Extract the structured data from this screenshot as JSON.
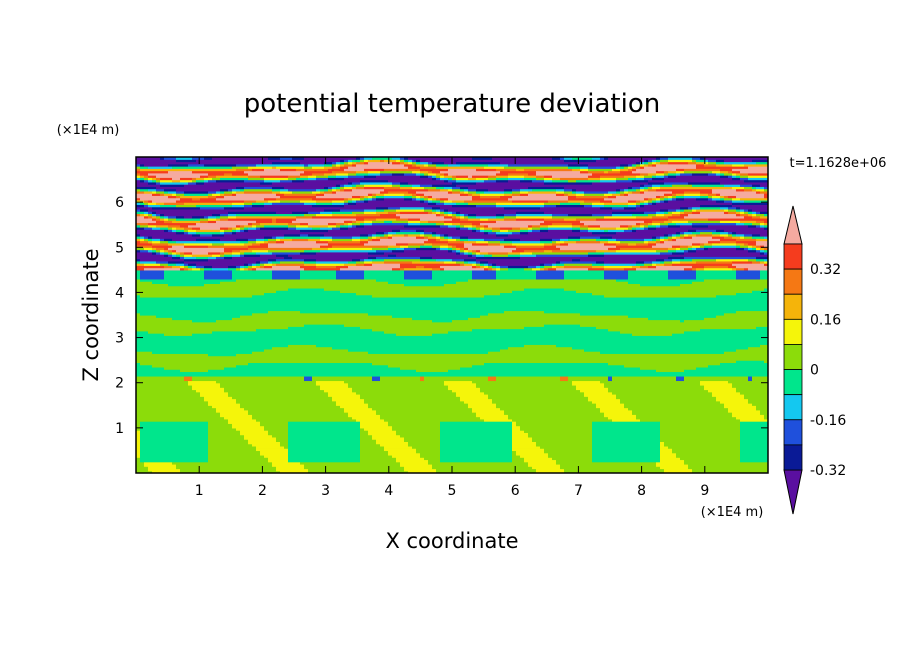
{
  "chart_data": {
    "type": "heatmap",
    "title": "potential temperature deviation",
    "xlabel": "X coordinate",
    "ylabel": "Z coordinate",
    "x_unit": "(×1E4 m)",
    "y_unit": "(×1E4 m)",
    "time_label": "t=1.1628e+06",
    "xlim": [
      0,
      10
    ],
    "ylim": [
      0,
      7
    ],
    "x_ticks": [
      "1",
      "2",
      "3",
      "4",
      "5",
      "6",
      "7",
      "8",
      "9"
    ],
    "y_ticks": [
      "1",
      "2",
      "3",
      "4",
      "5",
      "6"
    ],
    "colorbar": {
      "labels": [
        "0.32",
        "0.16",
        "0",
        "-0.16",
        "-0.32"
      ],
      "levels": [
        -0.4,
        -0.32,
        -0.24,
        -0.16,
        -0.08,
        0,
        0.08,
        0.16,
        0.24,
        0.32,
        0.4
      ],
      "colors": [
        "#5a0fa0",
        "#0a1a96",
        "#1f50dc",
        "#14c8f0",
        "#00e68c",
        "#8cdc0a",
        "#f5f50a",
        "#f5b40a",
        "#f57814",
        "#f53c1e",
        "#f5aaa0"
      ]
    },
    "regions": {
      "lower_layer_z": [
        0,
        2.1
      ],
      "interface_z": 2.1,
      "mid_layer_z": [
        2.1,
        4.3
      ],
      "upper_layer_z": [
        4.3,
        7.0
      ]
    }
  }
}
